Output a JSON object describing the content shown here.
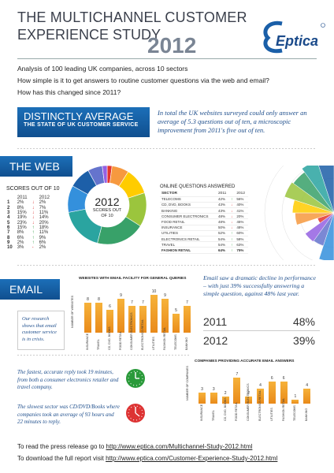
{
  "header": {
    "title_line1": "THE MULTICHANNEL CUSTOMER",
    "title_line2": "EXPERIENCE STUDY",
    "year": "2012",
    "brand": "Eptica"
  },
  "intro": [
    "Analysis of 100 leading UK companies, across 10 sectors",
    "How simple is it to get answers to routine customer questions via the web and email?",
    "How has this changed since 2011?"
  ],
  "distinctly": {
    "title": "DISTINCTLY AVERAGE",
    "subtitle": "THE STATE OF UK CUSTOMER SERVICE",
    "note": "In total the UK websites surveyed could only answer an average of 5.3 questions out of ten, a microscopic improvement from 2011's five out of ten."
  },
  "web": {
    "label": "THE WEB",
    "scores_title": "SCORES OUT OF 10",
    "cols": [
      "2011",
      "2012"
    ],
    "scores": [
      {
        "n": "1",
        "a": "2%",
        "dir": "down",
        "b": "2%"
      },
      {
        "n": "2",
        "a": "8%",
        "dir": "down",
        "b": "7%"
      },
      {
        "n": "3",
        "a": "15%",
        "dir": "down",
        "b": "11%"
      },
      {
        "n": "4",
        "a": "19%",
        "dir": "down",
        "b": "14%"
      },
      {
        "n": "5",
        "a": "23%",
        "dir": "down",
        "b": "20%"
      },
      {
        "n": "6",
        "a": "15%",
        "dir": "up",
        "b": "18%"
      },
      {
        "n": "7",
        "a": "8%",
        "dir": "up",
        "b": "11%"
      },
      {
        "n": "8",
        "a": "6%",
        "dir": "up",
        "b": "9%"
      },
      {
        "n": "9",
        "a": "2%",
        "dir": "up",
        "b": "6%"
      },
      {
        "n": "10",
        "a": "3%",
        "dir": "",
        "b": "2%"
      }
    ],
    "donut_center": "2012",
    "donut_sub": "SCORES OUT OF 10",
    "online_title": "ONLINE QUESTIONS ANSWERED",
    "online_cols": [
      "SECTOR",
      "2011",
      "2012"
    ],
    "online": [
      {
        "s": "TELECOMS",
        "a": "42%",
        "dir": "up",
        "b": "56%"
      },
      {
        "s": "CD, DVD, BOOKS",
        "a": "43%",
        "dir": "down",
        "b": "40%"
      },
      {
        "s": "BANKING",
        "a": "43%",
        "dir": "down",
        "b": "41%"
      },
      {
        "s": "CONSUMER ELECTRONICS",
        "a": "48%",
        "dir": "down",
        "b": "20%"
      },
      {
        "s": "FOOD RETAIL",
        "a": "48%",
        "dir": "down",
        "b": "45%"
      },
      {
        "s": "INSURANCE",
        "a": "50%",
        "dir": "down",
        "b": "48%"
      },
      {
        "s": "UTILITIES",
        "a": "52%",
        "dir": "up",
        "b": "60%"
      },
      {
        "s": "ELECTRONICS RETAIL",
        "a": "54%",
        "dir": "up",
        "b": "58%"
      },
      {
        "s": "TRAVEL",
        "a": "54%",
        "dir": "up",
        "b": "63%"
      },
      {
        "s": "FASHION RETAIL",
        "a": "64%",
        "dir": "up",
        "b": "75%"
      }
    ]
  },
  "email": {
    "label": "EMAIL",
    "chart1_title": "WEBSITES WITH EMAIL FACILITY FOR GENERAL QUERIES",
    "chart1_ylabel": "NUMBER OF WEBSITES",
    "research_note": "Our research shows that email customer service is in crisis.",
    "decline_note": "Email saw a dramatic decline in performance – with just 39% successfully answering a simple question, against 48% last year.",
    "stats": [
      {
        "year": "2011",
        "value": "48%"
      },
      {
        "year": "2012",
        "value": "39%"
      }
    ],
    "fastest": "The fastest, accurate reply took 19 minutes, from both a consumer electronics retailer and travel company.",
    "slowest": "The slowest sector was CD/DVD/Books where companies took an average of 93 hours and 22 minutes to reply.",
    "chart2_title": "COMPANIES PROVIDING ACCURATE EMAIL ANSWERS",
    "chart2_ylabel": "NUMBER OF COMPANIES"
  },
  "chart_data": [
    {
      "type": "bar",
      "title": "WEBSITES WITH EMAIL FACILITY FOR GENERAL QUERIES",
      "ylabel": "NUMBER OF WEBSITES",
      "categories": [
        "INSURANCE",
        "TRAVEL",
        "CD, DVD, BOOKS",
        "FOOD RETAIL",
        "CONSUMER ELECTRONICS",
        "ELECTRONICS RETAIL",
        "UTILITIES",
        "FASHION RETAIL",
        "TELECOMS",
        "BANKING"
      ],
      "values": [
        8,
        8,
        6,
        9,
        7,
        7,
        10,
        9,
        5,
        7
      ],
      "ylim": [
        0,
        10
      ]
    },
    {
      "type": "bar",
      "title": "COMPANIES PROVIDING ACCURATE EMAIL ANSWERS",
      "ylabel": "NUMBER OF COMPANIES",
      "categories": [
        "INSURANCE",
        "TRAVEL",
        "CD, DVD, BOOKS",
        "FOOD RETAIL",
        "CONSUMER ELECTRONICS",
        "ELECTRONICS RETAIL",
        "UTILITIES",
        "FASHION RETAIL",
        "TELECOMS",
        "BANKING"
      ],
      "values": [
        3,
        3,
        2,
        7,
        2,
        4,
        6,
        6,
        1,
        4
      ],
      "ylim": [
        0,
        8
      ]
    },
    {
      "type": "pie",
      "title": "2012 SCORES OUT OF 10",
      "categories": [
        "1",
        "2",
        "3",
        "4",
        "5",
        "6",
        "7",
        "8",
        "9",
        "10"
      ],
      "values": [
        2,
        7,
        11,
        14,
        20,
        18,
        11,
        9,
        6,
        2
      ]
    }
  ],
  "footer": {
    "press_prefix": "To read the press release go to ",
    "press_link": "http://www.eptica.com/Multichannel-Study-2012.html",
    "report_prefix": "To download the full report visit ",
    "report_link": "http://www.eptica.com/Customer-Experience-Study-2012.html"
  },
  "colors": {
    "blue": "#1c6fb8",
    "orange": "#f0a030",
    "green": "#2a9a3a",
    "red": "#d33"
  }
}
